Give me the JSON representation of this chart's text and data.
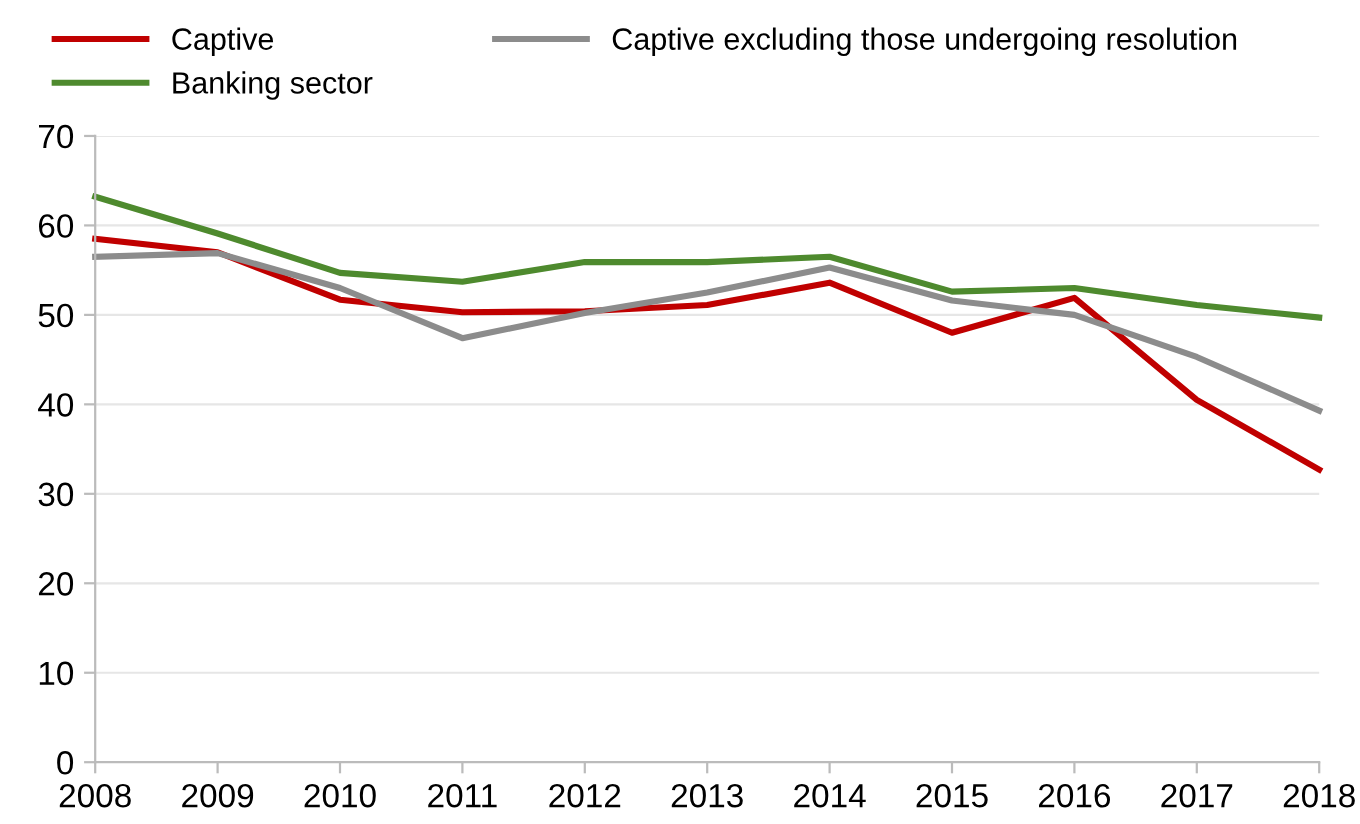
{
  "chart_data": {
    "type": "line",
    "x": [
      2008,
      2009,
      2010,
      2011,
      2012,
      2013,
      2014,
      2015,
      2016,
      2017,
      2018
    ],
    "series": [
      {
        "name": "Captive",
        "color": "#c00000",
        "values": [
          58.5,
          57.0,
          51.7,
          50.3,
          50.4,
          51.1,
          53.6,
          48.0,
          51.9,
          40.5,
          32.7
        ]
      },
      {
        "name": "Captive excluding those undergoing resolution",
        "color": "#8c8c8c",
        "values": [
          56.5,
          56.9,
          53.0,
          47.4,
          50.2,
          52.5,
          55.3,
          51.6,
          50.0,
          45.3,
          39.3
        ]
      },
      {
        "name": "Banking sector",
        "color": "#4e8a2e",
        "values": [
          63.2,
          59.1,
          54.7,
          53.7,
          55.9,
          55.9,
          56.5,
          52.6,
          53.0,
          51.1,
          49.7
        ]
      }
    ],
    "xlim": [
      2008,
      2018
    ],
    "xticks": [
      2008,
      2009,
      2010,
      2011,
      2012,
      2013,
      2014,
      2015,
      2016,
      2017,
      2018
    ],
    "ylim": [
      0,
      70
    ],
    "yticks": [
      0,
      10,
      20,
      30,
      40,
      50,
      60,
      70
    ],
    "grid": "y",
    "legend": "top",
    "marker": "none",
    "line_style": "solid"
  }
}
